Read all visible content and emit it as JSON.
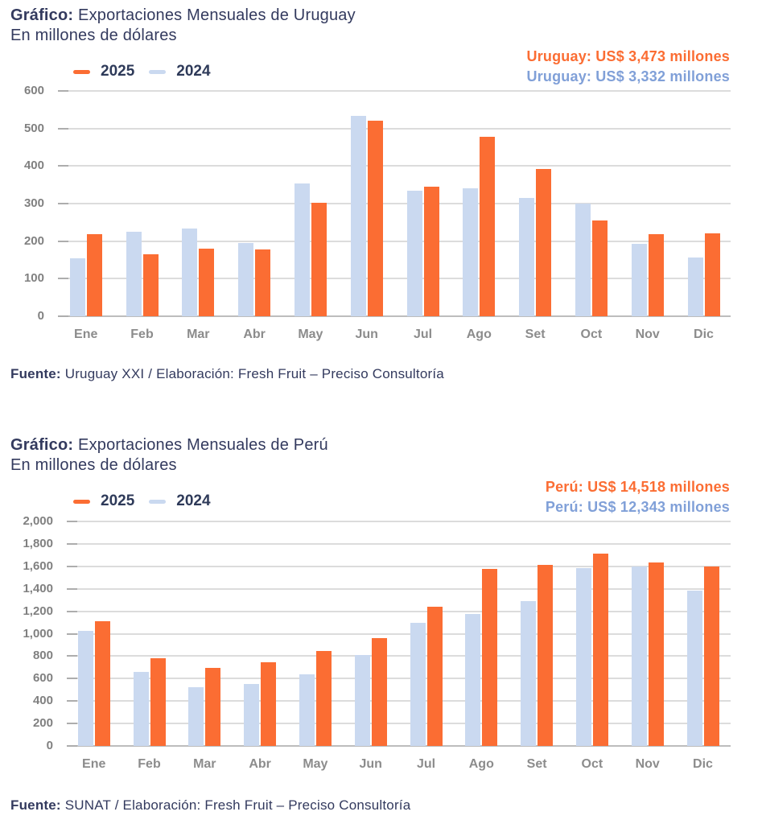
{
  "palette": {
    "orange": "#FB6D33",
    "light_blue": "#CAD9F0",
    "navy": "#333A5E",
    "annotation_blue": "#80A0D8",
    "axis_gray": "#808080",
    "gridline_gray": "#DCDCDC"
  },
  "chart_data": [
    {
      "type": "bar",
      "title": "Gráfico: Exportaciones Mensuales de Uruguay",
      "title_label": "Gráfico:",
      "title_rest": " Exportaciones Mensuales de Uruguay",
      "subtitle": "En millones de dólares",
      "xlabel": "",
      "ylabel": "",
      "grid": true,
      "legend_position": "top-left",
      "categories": [
        "Ene",
        "Feb",
        "Mar",
        "Abr",
        "May",
        "Jun",
        "Jul",
        "Ago",
        "Set",
        "Oct",
        "Nov",
        "Dic"
      ],
      "series": [
        {
          "name": "2025",
          "color": "#FB6D33",
          "values": [
            219,
            166,
            179,
            178,
            302,
            520,
            345,
            478,
            392,
            255,
            218,
            221
          ]
        },
        {
          "name": "2024",
          "color": "#CAD9F0",
          "values": [
            154,
            224,
            234,
            196,
            353,
            534,
            334,
            340,
            314,
            300,
            193,
            156
          ]
        }
      ],
      "ylim": [
        0,
        600
      ],
      "ytick_step": 100,
      "ytick_labels": [
        "0",
        "100",
        "200",
        "300",
        "400",
        "500",
        "600"
      ],
      "annotations": [
        {
          "text": "Uruguay: US$ 3,473 millones",
          "color": "#FB6D33"
        },
        {
          "text": "Uruguay: US$ 3,332 millones",
          "color": "#80A0D8"
        }
      ],
      "source_label": "Fuente:",
      "source_text": " Uruguay XXI / Elaboración: Fresh Fruit – Preciso Consultoría"
    },
    {
      "type": "bar",
      "title": "Gráfico: Exportaciones Mensuales de Perú",
      "title_label": "Gráfico:",
      "title_rest": " Exportaciones Mensuales de Perú",
      "subtitle": "En millones de dólares",
      "xlabel": "",
      "ylabel": "",
      "grid": true,
      "legend_position": "top-left",
      "categories": [
        "Ene",
        "Feb",
        "Mar",
        "Abr",
        "May",
        "Jun",
        "Jul",
        "Ago",
        "Set",
        "Oct",
        "Nov",
        "Dic"
      ],
      "series": [
        {
          "name": "2025",
          "color": "#FB6D33",
          "values": [
            1112,
            778,
            692,
            747,
            848,
            963,
            1240,
            1580,
            1612,
            1715,
            1635,
            1596
          ]
        },
        {
          "name": "2024",
          "color": "#CAD9F0",
          "values": [
            1025,
            660,
            525,
            553,
            638,
            808,
            1098,
            1178,
            1292,
            1582,
            1602,
            1382
          ]
        }
      ],
      "ylim": [
        0,
        2000
      ],
      "ytick_step": 200,
      "ytick_labels": [
        "0",
        "200",
        "400",
        "600",
        "800",
        "1,000",
        "1,200",
        "1,400",
        "1,600",
        "1,800",
        "2,000"
      ],
      "annotations": [
        {
          "text": "Perú: US$ 14,518 millones",
          "color": "#FB6D33"
        },
        {
          "text": "Perú: US$ 12,343 millones",
          "color": "#80A0D8"
        }
      ],
      "source_label": "Fuente:",
      "source_text": " SUNAT / Elaboración: Fresh Fruit – Preciso Consultoría"
    }
  ]
}
